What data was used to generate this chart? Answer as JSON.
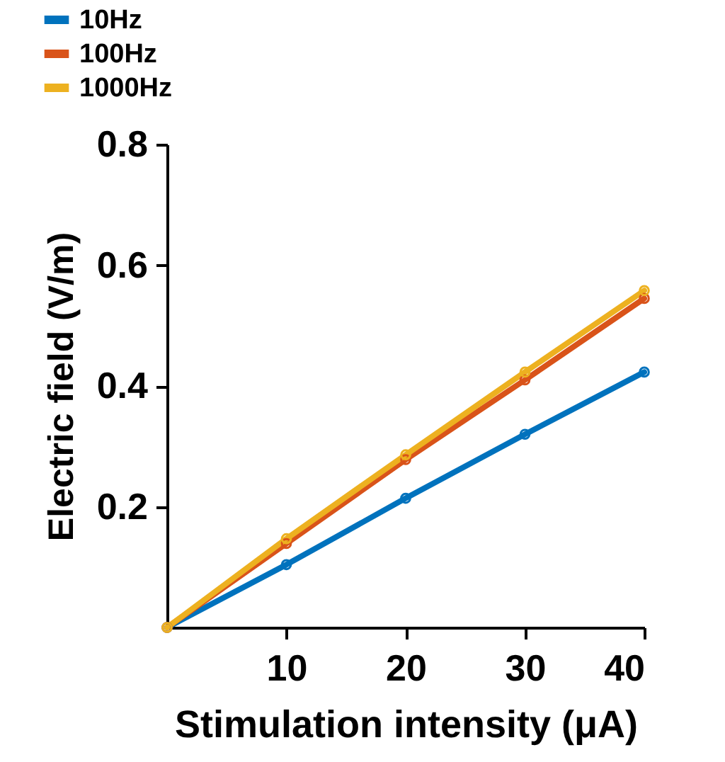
{
  "chart_data": {
    "type": "line",
    "xlabel": "Stimulation intensity (μA)",
    "ylabel": "Electric field (V/m)",
    "x": [
      0,
      10,
      20,
      30,
      40
    ],
    "xlim": [
      0,
      40
    ],
    "xticks": [
      10,
      20,
      30,
      40
    ],
    "ylim": [
      0,
      0.8
    ],
    "yticks": [
      0.2,
      0.4,
      0.6,
      0.8
    ],
    "grid": false,
    "legend": "top left",
    "marker": "circle",
    "line_style": "solid",
    "series": [
      {
        "name": "10Hz",
        "color": "#0072bd",
        "values": [
          0,
          0.104,
          0.214,
          0.32,
          0.423
        ]
      },
      {
        "name": "100Hz",
        "color": "#d95319",
        "values": [
          0,
          0.139,
          0.278,
          0.41,
          0.545
        ]
      },
      {
        "name": "1000Hz",
        "color": "#edb120",
        "values": [
          0,
          0.147,
          0.286,
          0.423,
          0.558
        ]
      }
    ]
  }
}
